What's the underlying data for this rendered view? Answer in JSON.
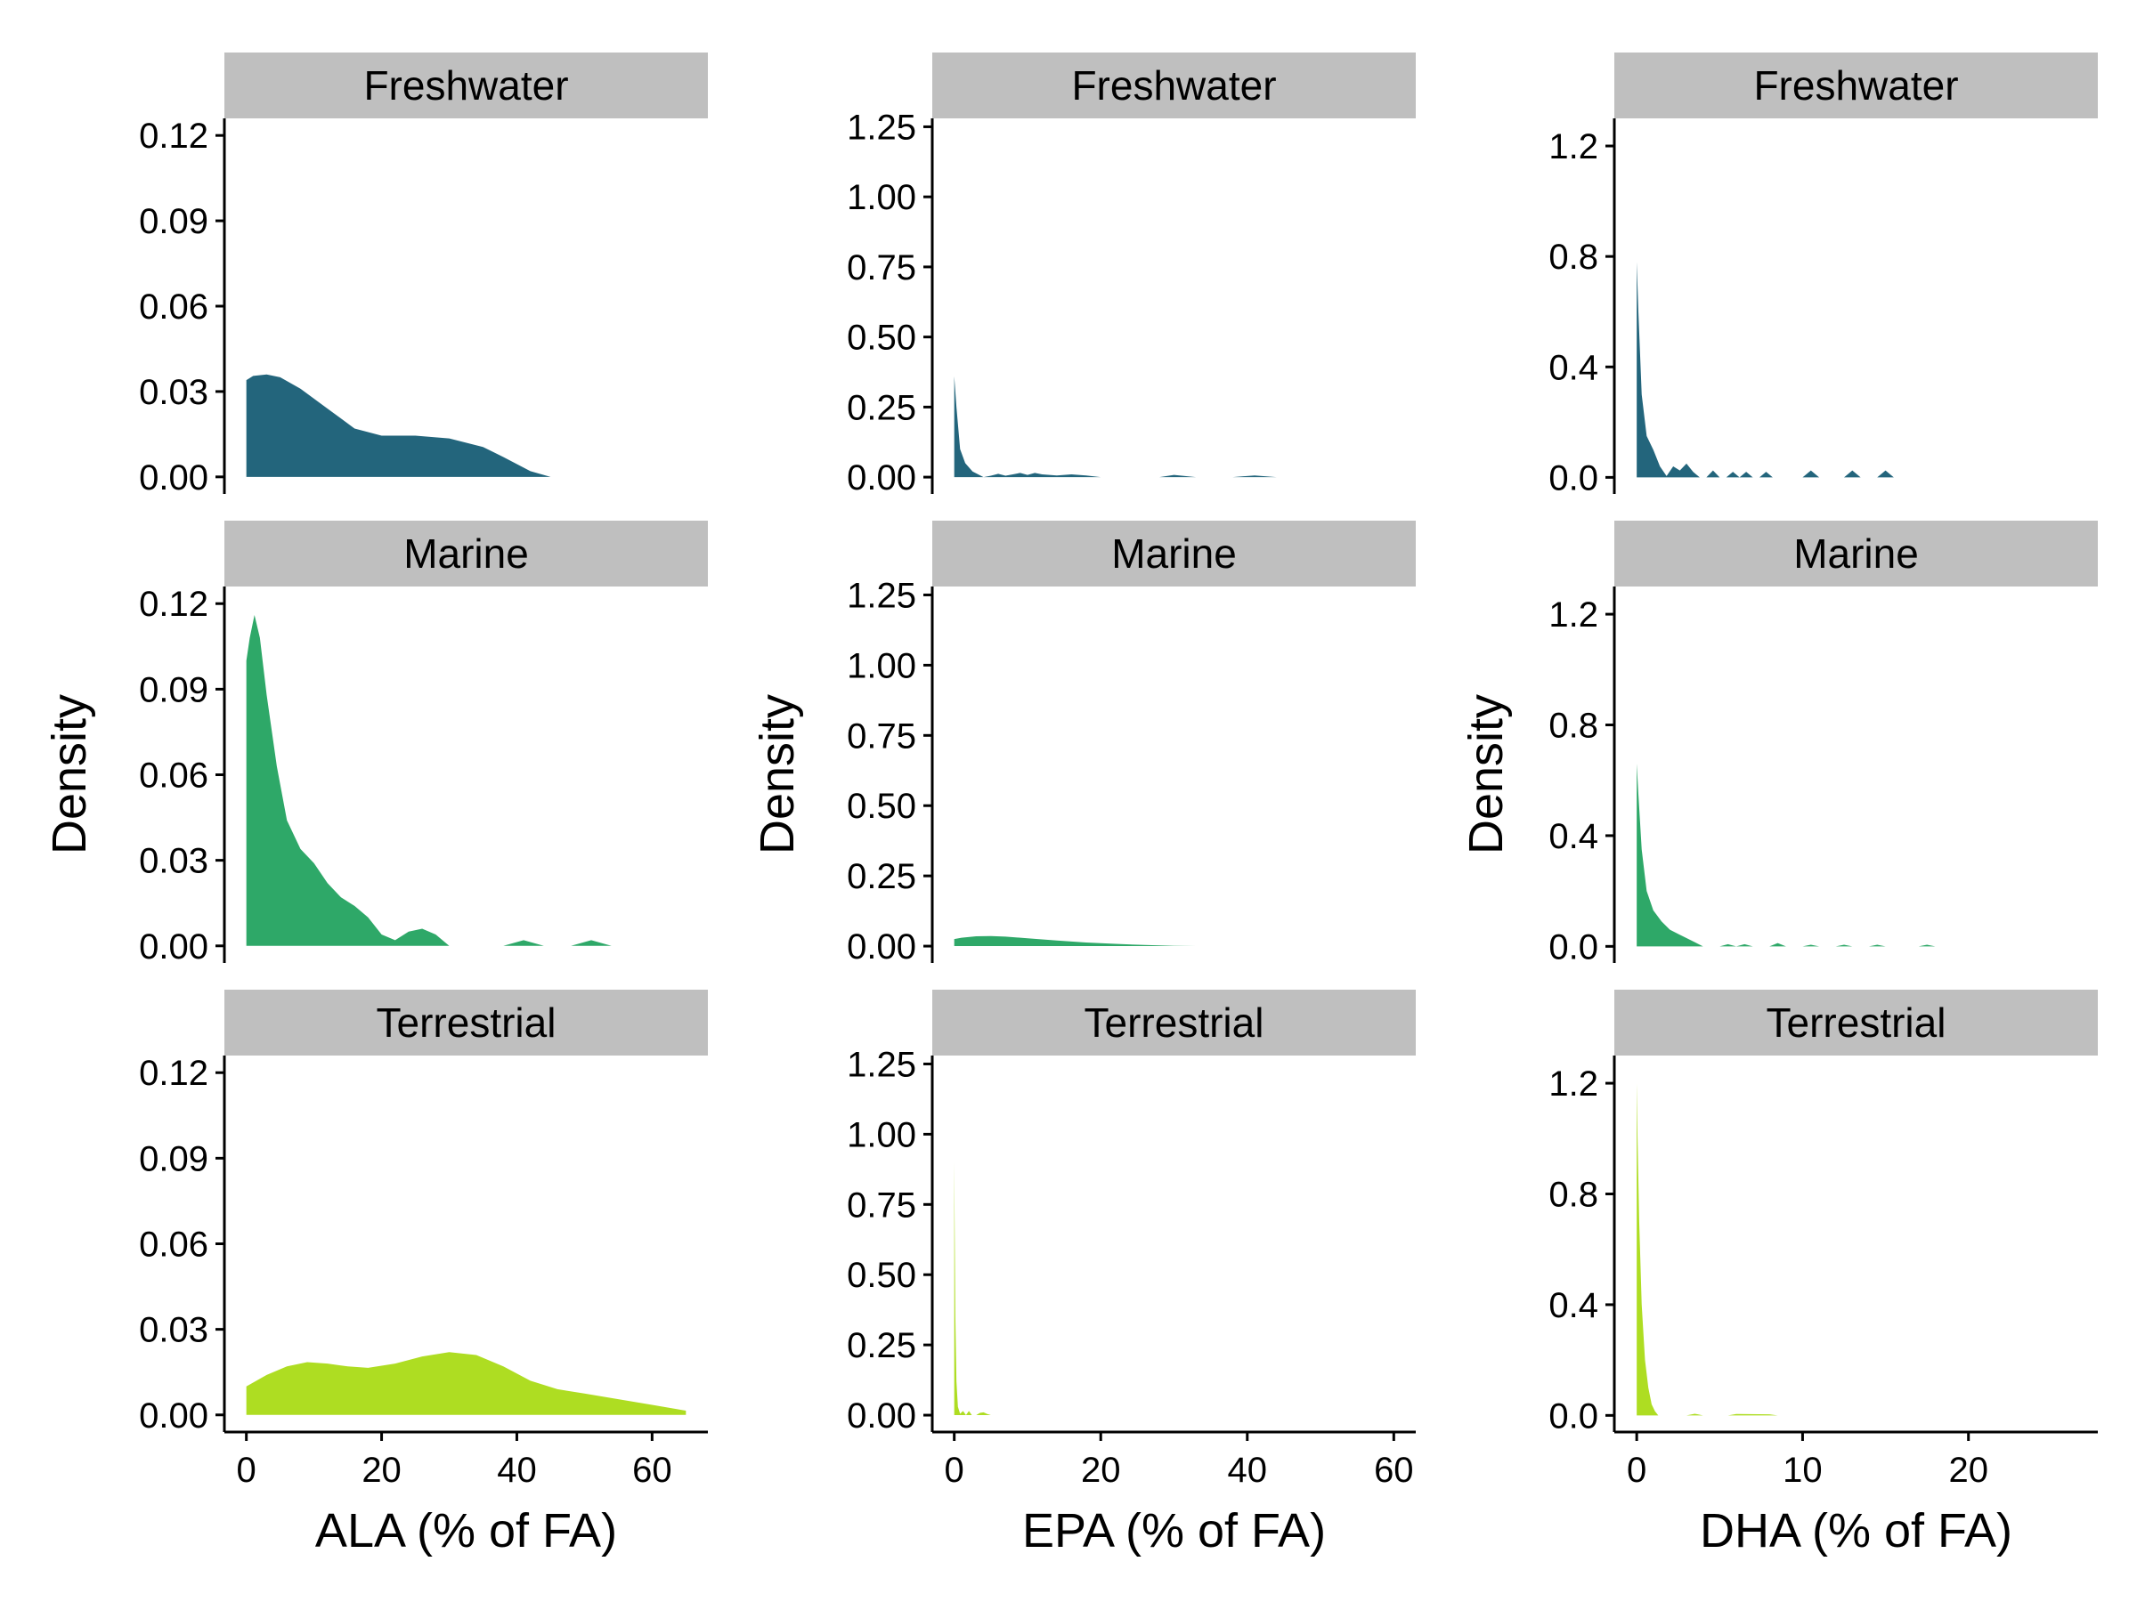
{
  "chart_data": {
    "type": "area",
    "layout": "3x3 facet grid (rows = environment, columns = fatty acid), independent scales",
    "strip_fill": "#bfbfbf",
    "colors": {
      "Freshwater": "#23657c",
      "Marine": "#2ea868",
      "Terrestrial": "#aedd22"
    },
    "ylabel": "Density",
    "columns": [
      {
        "key": "ALA",
        "xlabel": "ALA (% of FA)",
        "xlim": [
          -3.25,
          68.25
        ],
        "xticks": [
          0,
          20,
          40,
          60
        ],
        "ylim": [
          -0.006,
          0.126
        ],
        "yticks": [
          0.0,
          0.03,
          0.06,
          0.09,
          0.12
        ],
        "ytick_labels": [
          "0.00",
          "0.03",
          "0.06",
          "0.09",
          "0.12"
        ]
      },
      {
        "key": "EPA",
        "xlabel": "EPA (% of FA)",
        "xlim": [
          -3.0,
          63.0
        ],
        "xticks": [
          0,
          20,
          40,
          60
        ],
        "ylim": [
          -0.06,
          1.28
        ],
        "yticks": [
          0.0,
          0.25,
          0.5,
          0.75,
          1.0,
          1.25
        ],
        "ytick_labels": [
          "0.00",
          "0.25",
          "0.50",
          "0.75",
          "1.00",
          "1.25"
        ]
      },
      {
        "key": "DHA",
        "xlabel": "DHA (% of FA)",
        "xlim": [
          -1.35,
          27.8
        ],
        "xticks": [
          0,
          10,
          20
        ],
        "ylim": [
          -0.06,
          1.3
        ],
        "yticks": [
          0.0,
          0.4,
          0.8,
          1.2
        ],
        "ytick_labels": [
          "0.0",
          "0.4",
          "0.8",
          "1.2"
        ]
      }
    ],
    "panels": [
      {
        "row": "Freshwater",
        "col": "ALA",
        "x": [
          0,
          1,
          3,
          5,
          8,
          12,
          16,
          20,
          25,
          30,
          35,
          38,
          42,
          45
        ],
        "y": [
          0.034,
          0.0355,
          0.036,
          0.035,
          0.031,
          0.024,
          0.017,
          0.0145,
          0.0145,
          0.0135,
          0.0105,
          0.007,
          0.002,
          0.0
        ]
      },
      {
        "row": "Freshwater",
        "col": "EPA",
        "x": [
          0,
          0.3,
          0.8,
          1.5,
          2.5,
          4,
          5,
          6,
          7,
          8,
          9,
          10,
          11,
          12,
          14,
          16,
          18,
          20,
          25,
          28,
          30,
          33,
          38,
          41,
          44
        ],
        "y": [
          0.36,
          0.25,
          0.1,
          0.05,
          0.02,
          0.0,
          0.005,
          0.012,
          0.005,
          0.01,
          0.015,
          0.008,
          0.015,
          0.01,
          0.006,
          0.01,
          0.006,
          0.0,
          0.0,
          0.0,
          0.008,
          0.0,
          0.0,
          0.006,
          0.0
        ]
      },
      {
        "row": "Freshwater",
        "col": "DHA",
        "x": [
          0,
          0.1,
          0.3,
          0.6,
          1.0,
          1.4,
          1.8,
          2.2,
          2.6,
          3.0,
          3.4,
          3.8,
          4.2,
          4.6,
          5.0,
          5.4,
          5.8,
          6.2,
          6.6,
          7.0,
          7.4,
          7.8,
          8.2,
          8.6,
          9.0,
          10.0,
          10.5,
          11.0,
          11.5,
          12.5,
          13.0,
          13.5,
          14.5,
          15.0,
          15.5,
          16.0
        ],
        "y": [
          0.78,
          0.6,
          0.3,
          0.15,
          0.1,
          0.04,
          0.005,
          0.04,
          0.025,
          0.05,
          0.02,
          0.0,
          0.0,
          0.025,
          0.0,
          0.0,
          0.02,
          0.0,
          0.02,
          0.0,
          0.0,
          0.02,
          0.0,
          0.0,
          0.0,
          0.0,
          0.025,
          0.0,
          0.0,
          0.0,
          0.025,
          0.0,
          0.0,
          0.025,
          0.0,
          0.0
        ]
      },
      {
        "row": "Marine",
        "col": "ALA",
        "x": [
          0,
          0.5,
          1.2,
          2,
          3,
          4.5,
          6,
          8,
          10,
          12,
          14,
          16,
          18,
          20,
          22,
          24,
          26,
          28,
          30,
          35,
          38,
          41,
          44,
          48,
          51,
          54
        ],
        "y": [
          0.1,
          0.108,
          0.116,
          0.108,
          0.088,
          0.063,
          0.044,
          0.034,
          0.029,
          0.022,
          0.017,
          0.014,
          0.01,
          0.004,
          0.002,
          0.005,
          0.006,
          0.004,
          0.0,
          0.0,
          0.0,
          0.002,
          0.0,
          0.0,
          0.002,
          0.0
        ]
      },
      {
        "row": "Marine",
        "col": "EPA",
        "x": [
          0,
          1,
          3,
          5,
          7,
          10,
          14,
          18,
          22,
          26,
          30,
          33
        ],
        "y": [
          0.025,
          0.03,
          0.035,
          0.036,
          0.034,
          0.028,
          0.02,
          0.013,
          0.008,
          0.004,
          0.001,
          0.0
        ]
      },
      {
        "row": "Marine",
        "col": "DHA",
        "x": [
          0,
          0.1,
          0.3,
          0.6,
          1.0,
          1.5,
          2.0,
          2.5,
          3.0,
          3.5,
          4.0,
          5.0,
          5.5,
          6.0,
          6.5,
          7.0,
          8.0,
          8.5,
          9.0,
          10.0,
          10.5,
          11.0,
          12.0,
          12.5,
          13.0,
          14.0,
          14.5,
          15.0,
          17.0,
          17.5,
          18.0
        ],
        "y": [
          0.66,
          0.55,
          0.35,
          0.2,
          0.13,
          0.09,
          0.06,
          0.045,
          0.03,
          0.015,
          0.0,
          0.0,
          0.008,
          0.0,
          0.008,
          0.0,
          0.0,
          0.012,
          0.0,
          0.0,
          0.006,
          0.0,
          0.0,
          0.006,
          0.0,
          0.0,
          0.006,
          0.0,
          0.0,
          0.006,
          0.0
        ]
      },
      {
        "row": "Terrestrial",
        "col": "ALA",
        "x": [
          0,
          3,
          6,
          9,
          12,
          15,
          18,
          22,
          26,
          30,
          34,
          38,
          42,
          46,
          50,
          55,
          60,
          65
        ],
        "y": [
          0.01,
          0.014,
          0.017,
          0.0185,
          0.018,
          0.017,
          0.0165,
          0.018,
          0.0205,
          0.022,
          0.021,
          0.017,
          0.012,
          0.009,
          0.0075,
          0.0055,
          0.0035,
          0.0015
        ]
      },
      {
        "row": "Terrestrial",
        "col": "EPA",
        "x": [
          0,
          0.05,
          0.15,
          0.3,
          0.5,
          0.8,
          1.2,
          1.6,
          2.0,
          2.4,
          3.0,
          3.5,
          4.0,
          4.5,
          5.0
        ],
        "y": [
          0.9,
          0.7,
          0.35,
          0.12,
          0.03,
          0.005,
          0.015,
          0.0,
          0.015,
          0.0,
          0.0,
          0.008,
          0.01,
          0.004,
          0.0
        ]
      },
      {
        "row": "Terrestrial",
        "col": "DHA",
        "x": [
          0,
          0.05,
          0.15,
          0.3,
          0.5,
          0.7,
          0.9,
          1.1,
          1.3,
          1.6,
          2.0,
          3.0,
          3.5,
          4.0,
          5.5,
          6.0,
          8.0,
          8.5
        ],
        "y": [
          1.2,
          1.0,
          0.7,
          0.4,
          0.2,
          0.1,
          0.04,
          0.015,
          0.0,
          0.0,
          0.0,
          0.0,
          0.006,
          0.0,
          0.0,
          0.005,
          0.004,
          0.0
        ]
      }
    ]
  }
}
